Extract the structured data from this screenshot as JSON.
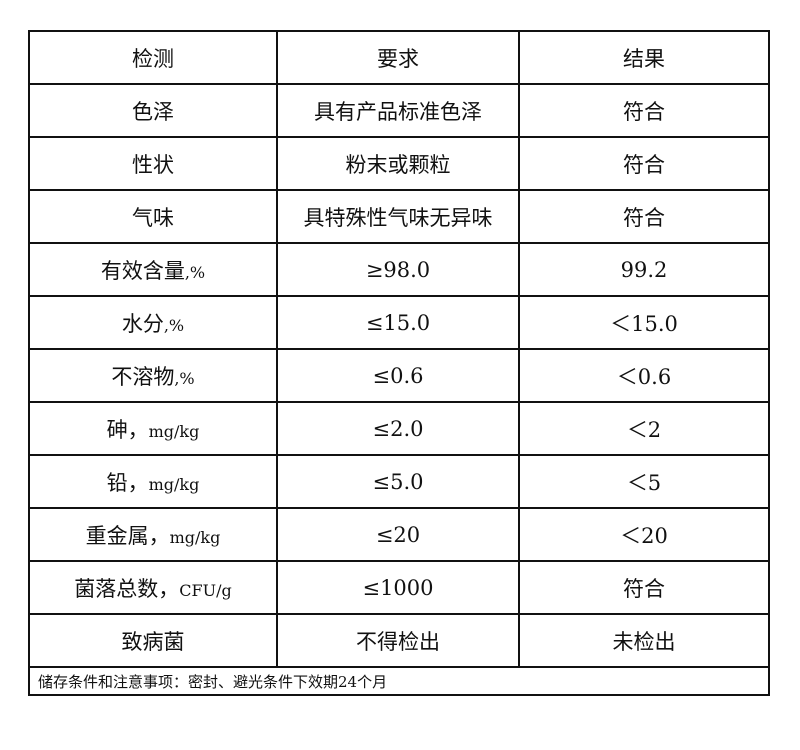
{
  "header": [
    "检测",
    "要求",
    "结果"
  ],
  "rows": [
    {
      "item": "色泽",
      "unit": "",
      "req": "具有产品标准色泽",
      "res": "符合"
    },
    {
      "item": "性状",
      "unit": "",
      "req": "粉末或颗粒",
      "res": "符合"
    },
    {
      "item": "气味",
      "unit": "",
      "req": "具特殊性气味无异味",
      "res": "符合"
    },
    {
      "item": "有效含量",
      "unit": ",%",
      "req": "≥98.0",
      "res": "99.2"
    },
    {
      "item": "水分",
      "unit": ",%",
      "req": "≤15.0",
      "res": "＜15.0"
    },
    {
      "item": "不溶物",
      "unit": ",%",
      "req": "≤0.6",
      "res": "＜0.6"
    },
    {
      "item": "砷，",
      "unit": "mg/kg",
      "req": "≤2.0",
      "res": "＜2"
    },
    {
      "item": "铅，",
      "unit": "mg/kg",
      "req": "≤5.0",
      "res": "＜5"
    },
    {
      "item": "重金属，",
      "unit": "mg/kg",
      "req": "≤20",
      "res": "＜20"
    },
    {
      "item": "菌落总数，",
      "unit": "CFU/g",
      "req": "≤1000",
      "res": "符合"
    },
    {
      "item": "致病菌",
      "unit": "",
      "req": "不得检出",
      "res": "未检出"
    }
  ],
  "footer": "储存条件和注意事项：密封、避光条件下效期24个月"
}
